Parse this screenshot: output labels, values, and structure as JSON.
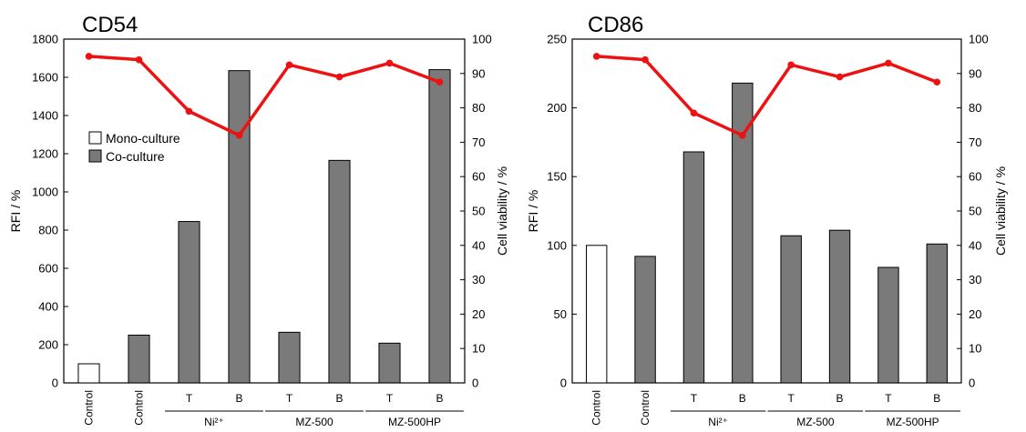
{
  "colors": {
    "mono": "#ffffff",
    "co": "#7a7a7a",
    "viability": "#ee1111",
    "axis": "#000000"
  },
  "chart_data": [
    {
      "type": "bar",
      "title": "CD54",
      "ylabel": "RFI / %",
      "y2label": "Cell viability / %",
      "ylim": [
        0,
        1800
      ],
      "yticks": [
        0,
        200,
        400,
        600,
        800,
        1000,
        1200,
        1400,
        1600,
        1800
      ],
      "y2lim": [
        0,
        100
      ],
      "y2ticks": [
        0,
        10,
        20,
        30,
        40,
        50,
        60,
        70,
        80,
        90,
        100
      ],
      "categories": [
        "Control",
        "Control",
        "T",
        "B",
        "T",
        "B",
        "T",
        "B"
      ],
      "groups": [
        {
          "label": "Ni²⁺",
          "from": 2,
          "to": 3
        },
        {
          "label": "MZ-500",
          "from": 4,
          "to": 5
        },
        {
          "label": "MZ-500HP",
          "from": 6,
          "to": 7
        }
      ],
      "bar_series": [
        "mono",
        "co",
        "co",
        "co",
        "co",
        "co",
        "co",
        "co"
      ],
      "values": [
        100,
        250,
        845,
        1635,
        265,
        1165,
        208,
        1640
      ],
      "line": {
        "axis": "y2",
        "values": [
          95,
          94,
          79,
          72,
          92.5,
          89,
          93,
          87.5
        ]
      },
      "legend": {
        "position": "upper-left",
        "entries": [
          {
            "key": "mono",
            "label": "Mono-culture"
          },
          {
            "key": "co",
            "label": "Co-culture"
          }
        ]
      }
    },
    {
      "type": "bar",
      "title": "CD86",
      "ylabel": "RFI / %",
      "y2label": "Cell viability / %",
      "ylim": [
        0,
        250
      ],
      "yticks": [
        0,
        50,
        100,
        150,
        200,
        250
      ],
      "y2lim": [
        0,
        100
      ],
      "y2ticks": [
        0,
        10,
        20,
        30,
        40,
        50,
        60,
        70,
        80,
        90,
        100
      ],
      "categories": [
        "Control",
        "Control",
        "T",
        "B",
        "T",
        "B",
        "T",
        "B"
      ],
      "groups": [
        {
          "label": "Ni²⁺",
          "from": 2,
          "to": 3
        },
        {
          "label": "MZ-500",
          "from": 4,
          "to": 5
        },
        {
          "label": "MZ-500HP",
          "from": 6,
          "to": 7
        }
      ],
      "bar_series": [
        "mono",
        "co",
        "co",
        "co",
        "co",
        "co",
        "co",
        "co"
      ],
      "values": [
        100,
        92,
        168,
        218,
        107,
        111,
        84,
        101
      ],
      "line": {
        "axis": "y2",
        "values": [
          95,
          94,
          78.5,
          72,
          92.5,
          89,
          93,
          87.5
        ]
      }
    }
  ]
}
